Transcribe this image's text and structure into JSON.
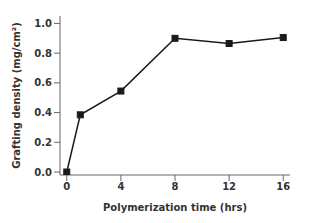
{
  "chart_data": {
    "type": "line",
    "x": [
      0,
      1,
      4,
      8,
      12,
      16
    ],
    "series": [
      {
        "name": "Grafting density",
        "color": "#1a1a1a",
        "marker": "square",
        "values": [
          0.0,
          0.385,
          0.545,
          0.9,
          0.865,
          0.905
        ]
      }
    ],
    "xlabel": "Polymerization time (hrs)",
    "ylabel": "Grafting density (mg/cm²)",
    "xlim": [
      -0.5,
      16.5
    ],
    "ylim": [
      -0.02,
      1.05
    ],
    "xticks": [
      0,
      4,
      8,
      12,
      16
    ],
    "yticks": [
      {
        "value": 0,
        "label": "0.0"
      },
      0.2,
      0.4,
      0.6,
      0.8,
      {
        "value": 1,
        "label": "1.0"
      }
    ],
    "grid": false
  }
}
